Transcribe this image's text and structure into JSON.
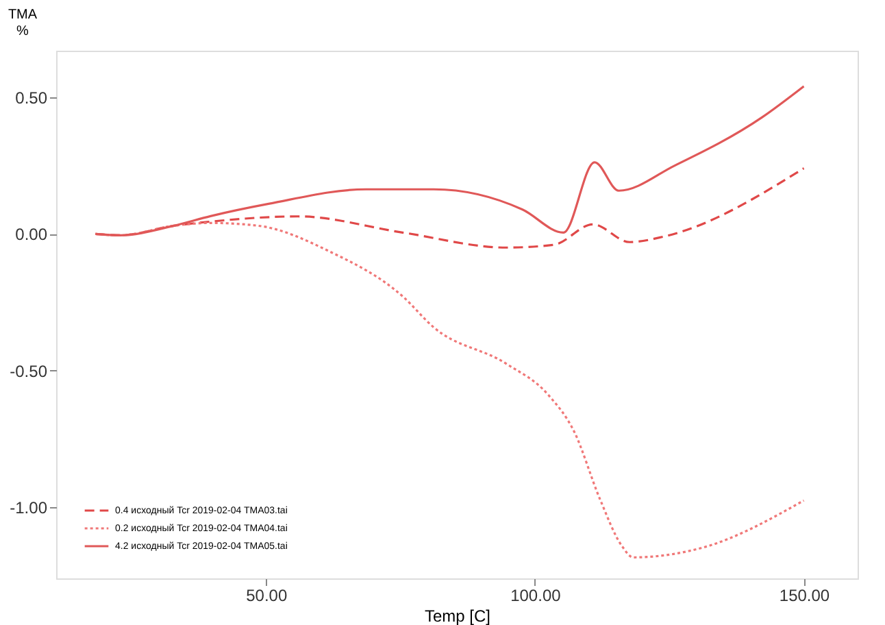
{
  "chart_data": {
    "type": "line",
    "xlabel": "Temp  [C]",
    "ylabel": "TMA\n%",
    "xlim": [
      11,
      160
    ],
    "ylim": [
      -1.26,
      0.67
    ],
    "xticks": [
      {
        "value": 50,
        "label": "50.00"
      },
      {
        "value": 100,
        "label": "100.00"
      },
      {
        "value": 150,
        "label": "150.00"
      }
    ],
    "yticks": [
      {
        "value": -1,
        "label": "-1.00"
      },
      {
        "value": -0.5,
        "label": "-0.50"
      },
      {
        "value": 0,
        "label": "0.00"
      },
      {
        "value": 0.5,
        "label": "0.50"
      }
    ],
    "grid": false,
    "legend": "bottom left",
    "marker": "none",
    "series": [
      {
        "name": "0.4  исходный Tcr 2019-02-04 TMA03.tai",
        "color": "#e04848",
        "line_style": "dashed",
        "x": [
          18.3,
          22.9,
          32.9,
          39.7,
          56.0,
          75.4,
          94.7,
          103.5,
          110.8,
          117.6,
          123.9,
          150
        ],
        "values": [
          0,
          -0.005,
          0.03,
          0.045,
          0.064,
          0.005,
          -0.05,
          -0.04,
          0.035,
          -0.03,
          -0.01,
          0.24
        ]
      },
      {
        "name": "0.2  исходный Tcr 2019-02-04 TMA04.tai",
        "color": "#f07878",
        "line_style": "dotted",
        "x": [
          18.3,
          22.9,
          32.9,
          39.7,
          48.5,
          61.8,
          75.4,
          81.2,
          94.7,
          102.5,
          107.3,
          112.1,
          116.1,
          118.3,
          130.9,
          150
        ],
        "values": [
          0,
          -0.005,
          0.03,
          0.04,
          0.03,
          -0.064,
          -0.228,
          -0.342,
          -0.475,
          -0.589,
          -0.723,
          -0.97,
          -1.139,
          -1.183,
          -1.149,
          -0.975
        ]
      },
      {
        "name": "4.2  исходный Tcr 2019-02-04 TMA05.tai",
        "color": "#e05858",
        "line_style": "solid",
        "x": [
          18.3,
          22.9,
          32.9,
          39.7,
          50.5,
          68.6,
          81.2,
          97.7,
          105.3,
          111.1,
          115.6,
          126.0,
          142.2,
          150
        ],
        "values": [
          0,
          -0.005,
          0.03,
          0.065,
          0.11,
          0.163,
          0.163,
          0.089,
          0.005,
          0.262,
          0.158,
          0.25,
          0.426,
          0.54
        ]
      }
    ]
  }
}
